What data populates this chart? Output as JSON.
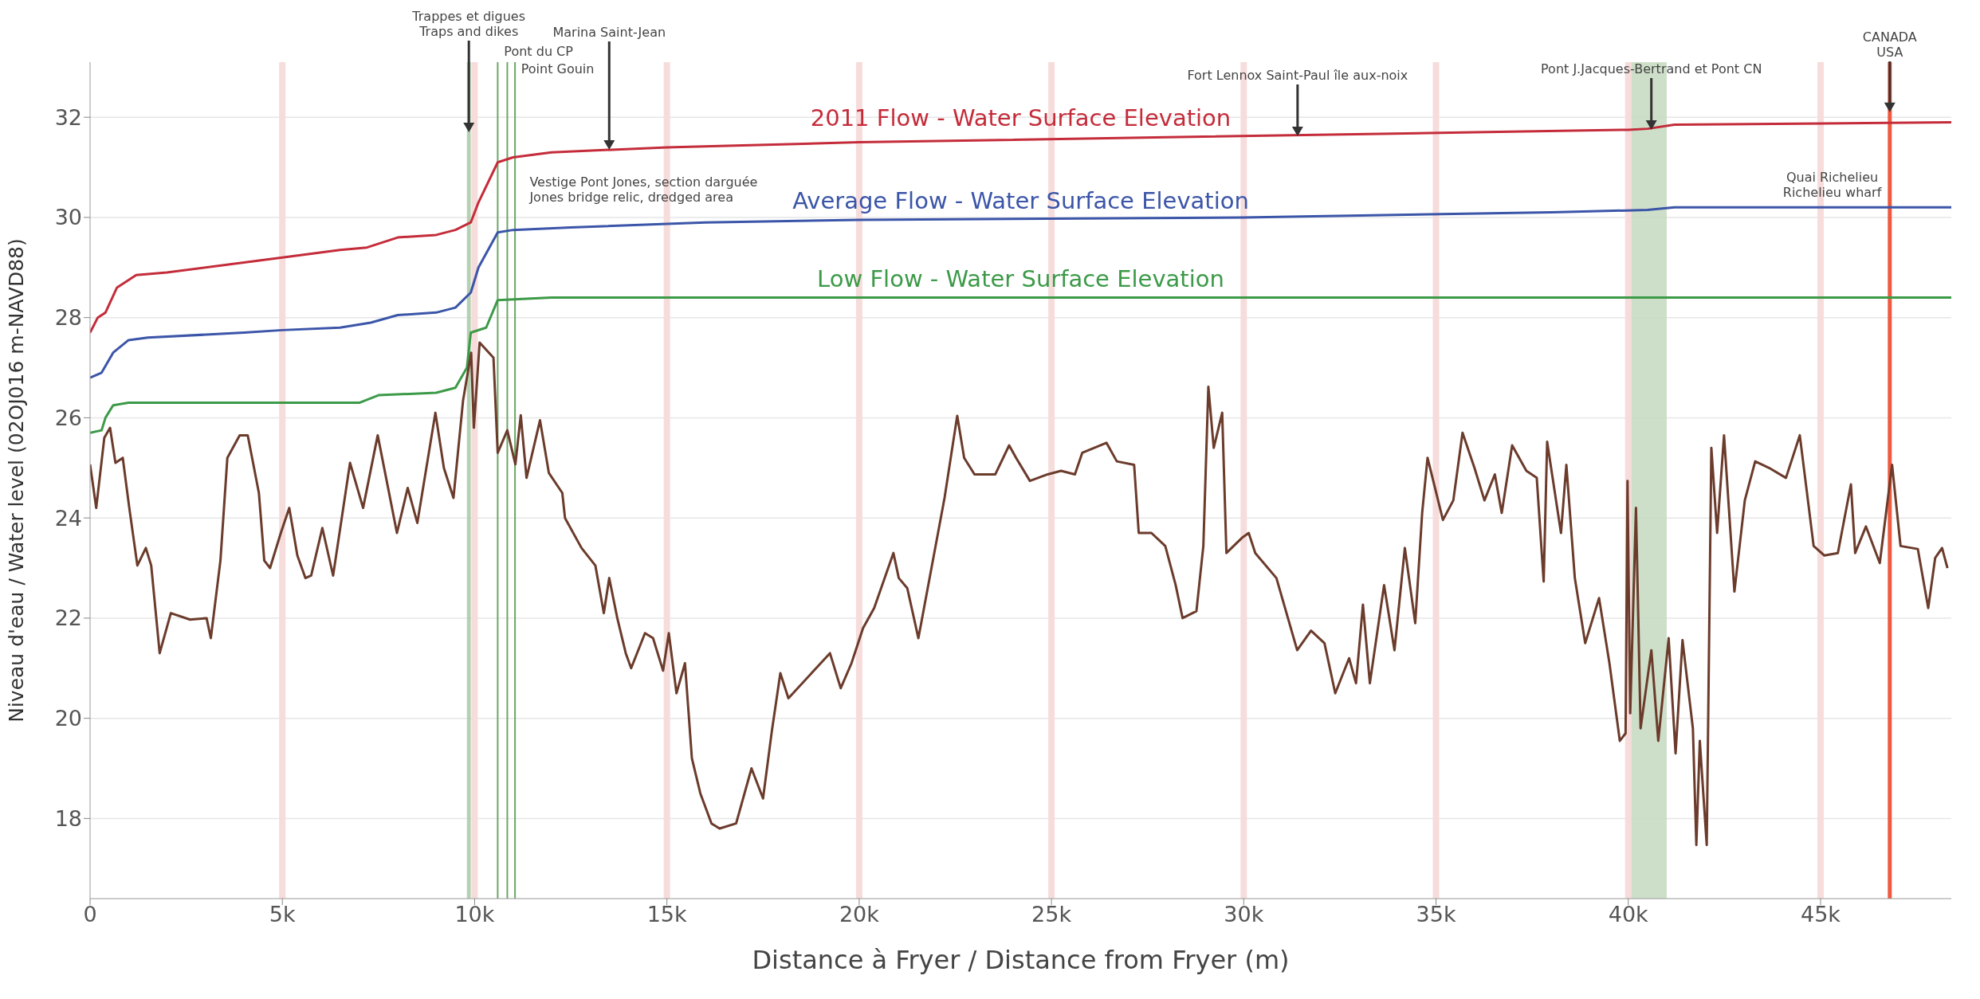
{
  "chart_data": {
    "type": "line",
    "xlabel": "Distance à Fryer / Distance from Fryer (m)",
    "ylabel": "Niveau d'eau  / Water level (02OJ016 m-NAVD88)",
    "xlim": [
      0,
      48400
    ],
    "ylim": [
      16.4,
      33.1
    ],
    "xticks": [
      {
        "value": 0,
        "label": "0"
      },
      {
        "value": 5000,
        "label": "5k"
      },
      {
        "value": 10000,
        "label": "10k"
      },
      {
        "value": 15000,
        "label": "15k"
      },
      {
        "value": 20000,
        "label": "20k"
      },
      {
        "value": 25000,
        "label": "25k"
      },
      {
        "value": 30000,
        "label": "30k"
      },
      {
        "value": 35000,
        "label": "35k"
      },
      {
        "value": 40000,
        "label": "40k"
      },
      {
        "value": 45000,
        "label": "45k"
      }
    ],
    "yticks": [
      18,
      20,
      22,
      24,
      26,
      28,
      30,
      32
    ],
    "grid": "y",
    "series": [
      {
        "name": "2011 Flow - Water Surface Elevation",
        "color": "#c42c3a",
        "x": [
          0,
          200,
          400,
          700,
          1200,
          2000,
          4000,
          5000,
          6500,
          7200,
          8000,
          9000,
          9500,
          9900,
          10100,
          10600,
          11000,
          12000,
          15000,
          20000,
          28000,
          36000,
          40000,
          40500,
          41200,
          48400
        ],
        "values": [
          27.7,
          28.0,
          28.1,
          28.6,
          28.85,
          28.9,
          29.1,
          29.2,
          29.35,
          29.4,
          29.6,
          29.65,
          29.75,
          29.9,
          30.3,
          31.1,
          31.2,
          31.3,
          31.4,
          31.5,
          31.6,
          31.7,
          31.75,
          31.77,
          31.85,
          31.9
        ]
      },
      {
        "name": "Average Flow - Water Surface Elevation",
        "color": "#3b55a8",
        "x": [
          0,
          300,
          600,
          1000,
          1500,
          4000,
          5000,
          6500,
          7300,
          8000,
          9000,
          9500,
          9900,
          10100,
          10600,
          11000,
          12500,
          16000,
          20000,
          30000,
          38000,
          40500,
          41200,
          48400
        ],
        "values": [
          26.8,
          26.9,
          27.3,
          27.55,
          27.6,
          27.7,
          27.75,
          27.8,
          27.9,
          28.05,
          28.1,
          28.2,
          28.5,
          29.0,
          29.7,
          29.75,
          29.8,
          29.9,
          29.95,
          30.0,
          30.1,
          30.15,
          30.2,
          30.2
        ]
      },
      {
        "name": "Low Flow - Water Surface Elevation",
        "color": "#3c9a48",
        "x": [
          0,
          300,
          400,
          600,
          1000,
          7000,
          7500,
          9000,
          9500,
          9800,
          9900,
          10300,
          10600,
          12000,
          48400
        ],
        "values": [
          25.7,
          25.75,
          26.0,
          26.25,
          26.3,
          26.3,
          26.45,
          26.5,
          26.6,
          27.0,
          27.7,
          27.8,
          28.35,
          28.4,
          28.4
        ]
      },
      {
        "color": "#6b3b2b",
        "x": [
          0,
          160,
          370,
          520,
          660,
          850,
          1020,
          1230,
          1450,
          1590,
          1810,
          2100,
          2600,
          3030,
          3140,
          3390,
          3570,
          3890,
          4100,
          4390,
          4530,
          4680,
          4960,
          5180,
          5390,
          5600,
          5750,
          6040,
          6320,
          6760,
          7100,
          7480,
          7980,
          8260,
          8510,
          8980,
          9200,
          9450,
          9700,
          9910,
          9980,
          10130,
          10490,
          10600,
          10850,
          11060,
          11200,
          11350,
          11700,
          11930,
          12280,
          12350,
          12780,
          13140,
          13360,
          13500,
          13710,
          13930,
          14070,
          14430,
          14640,
          14900,
          15050,
          15250,
          15470,
          15650,
          15870,
          16160,
          16370,
          16800,
          17200,
          17500,
          17730,
          17950,
          18160,
          18880,
          19240,
          19520,
          19800,
          20100,
          20390,
          20890,
          21030,
          21250,
          21540,
          22220,
          22550,
          22730,
          23000,
          23540,
          23900,
          24080,
          24440,
          24900,
          25250,
          25610,
          25800,
          26430,
          26700,
          27150,
          27270,
          27600,
          27960,
          28230,
          28410,
          28770,
          28950,
          29080,
          29220,
          29440,
          29550,
          29950,
          30130,
          30300,
          30850,
          31390,
          31750,
          32100,
          32380,
          32740,
          32920,
          33100,
          33280,
          33650,
          33920,
          34190,
          34460,
          34640,
          34780,
          35180,
          35450,
          35690,
          36000,
          36260,
          36530,
          36710,
          36980,
          37350,
          37620,
          37800,
          37890,
          38250,
          38390,
          38610,
          38880,
          39240,
          39510,
          39780,
          39930,
          39980,
          40050,
          40200,
          40320,
          40600,
          40780,
          41050,
          41230,
          41410,
          41680,
          41770,
          41860,
          42040,
          42160,
          42310,
          42490,
          42760,
          43030,
          43300,
          43660,
          44100,
          44460,
          44820,
          45100,
          45450,
          45790,
          45900,
          46180,
          46540,
          46860,
          47080,
          47530,
          47800,
          47980,
          48160,
          48300
        ],
        "values": [
          25.07,
          24.2,
          25.6,
          25.8,
          25.1,
          25.2,
          24.2,
          23.05,
          23.4,
          23.05,
          21.3,
          22.1,
          21.97,
          22.0,
          21.6,
          23.15,
          25.2,
          25.65,
          25.65,
          24.5,
          23.15,
          23.0,
          23.7,
          24.2,
          23.25,
          22.8,
          22.85,
          23.8,
          22.85,
          25.1,
          24.2,
          25.65,
          23.7,
          24.6,
          23.9,
          26.1,
          25.0,
          24.4,
          26.35,
          27.3,
          25.8,
          27.5,
          27.2,
          25.3,
          25.75,
          25.07,
          26.05,
          24.8,
          25.95,
          24.9,
          24.5,
          24.0,
          23.4,
          23.05,
          22.1,
          22.8,
          22.0,
          21.3,
          21.0,
          21.7,
          21.6,
          20.95,
          21.7,
          20.5,
          21.1,
          19.2,
          18.5,
          17.9,
          17.8,
          17.9,
          19.0,
          18.4,
          19.75,
          20.9,
          20.4,
          21.0,
          21.3,
          20.6,
          21.1,
          21.8,
          22.2,
          23.3,
          22.8,
          22.6,
          21.6,
          24.4,
          26.04,
          25.2,
          24.87,
          24.87,
          25.45,
          25.2,
          24.74,
          24.87,
          24.94,
          24.87,
          25.3,
          25.5,
          25.13,
          25.06,
          23.7,
          23.7,
          23.44,
          22.66,
          22.0,
          22.14,
          23.44,
          26.62,
          25.4,
          26.1,
          23.3,
          23.6,
          23.7,
          23.3,
          22.8,
          21.36,
          21.75,
          21.5,
          20.5,
          21.2,
          20.7,
          22.27,
          20.7,
          22.66,
          21.36,
          23.4,
          21.9,
          24.1,
          25.2,
          23.96,
          24.35,
          25.7,
          25.0,
          24.35,
          24.87,
          24.1,
          25.45,
          24.94,
          24.8,
          22.73,
          25.52,
          23.7,
          25.06,
          22.8,
          21.5,
          22.4,
          21.1,
          19.55,
          19.7,
          24.74,
          20.1,
          24.2,
          19.8,
          21.36,
          19.55,
          21.6,
          19.3,
          21.56,
          19.8,
          17.47,
          19.55,
          17.47,
          25.4,
          23.7,
          25.65,
          22.53,
          24.35,
          25.13,
          25.0,
          24.8,
          25.65,
          23.44,
          23.25,
          23.3,
          24.67,
          23.3,
          23.83,
          23.1,
          25.06,
          23.44,
          23.38,
          22.2,
          23.2,
          23.4,
          23.0
        ]
      }
    ],
    "ref_lines": [
      {
        "axis": "x",
        "value": 5000,
        "color": "#f7dcdc"
      },
      {
        "axis": "x",
        "value": 10000,
        "color": "#f7dcdc"
      },
      {
        "axis": "x",
        "value": 15000,
        "color": "#f7dcdc"
      },
      {
        "axis": "x",
        "value": 20000,
        "color": "#f7dcdc"
      },
      {
        "axis": "x",
        "value": 25000,
        "color": "#f7dcdc"
      },
      {
        "axis": "x",
        "value": 30000,
        "color": "#f7dcdc"
      },
      {
        "axis": "x",
        "value": 35000,
        "color": "#f7dcdc"
      },
      {
        "axis": "x",
        "value": 40000,
        "color": "#f7dcdc"
      },
      {
        "axis": "x",
        "value": 45000,
        "color": "#f7dcdc"
      },
      {
        "axis": "x",
        "value": 10600,
        "color": "#6aa864"
      },
      {
        "axis": "x",
        "value": 10850,
        "color": "#6aa864"
      },
      {
        "axis": "x",
        "value": 11050,
        "color": "#6aa864"
      },
      {
        "axis": "x",
        "value": 46800,
        "color": "#ee5a40"
      }
    ],
    "bands": [
      {
        "axis": "x",
        "from": 9800,
        "to": 9900,
        "color": "#a9c9a3"
      },
      {
        "axis": "x",
        "from": 40000,
        "to": 41000,
        "color": "#c5d9c0"
      }
    ],
    "annotations": [
      {
        "text": "Trappes et digues\nTraps and dikes",
        "x": 9850,
        "y": 31.7
      },
      "Pont du CP",
      "Point Gouin",
      {
        "text": "Vestige Pont Jones, section darguée\nJones bridge relic, dredged area",
        "x": 10600,
        "y": 31.1
      },
      {
        "text": "Marina Saint-Jean",
        "x": 13500,
        "y": 31.35
      },
      {
        "text": "Fort Lennox Saint-Paul île aux-noix",
        "x": 31400,
        "y": 31.62
      },
      {
        "text": "Pont J.Jacques-Bertrand et Pont CN",
        "x": 40600,
        "y": 31.75
      },
      {
        "text": "CANADA\nUSA",
        "x": 46800,
        "y": 32.1
      },
      "Quai Richelieu\nRichelieu wharf"
    ]
  }
}
